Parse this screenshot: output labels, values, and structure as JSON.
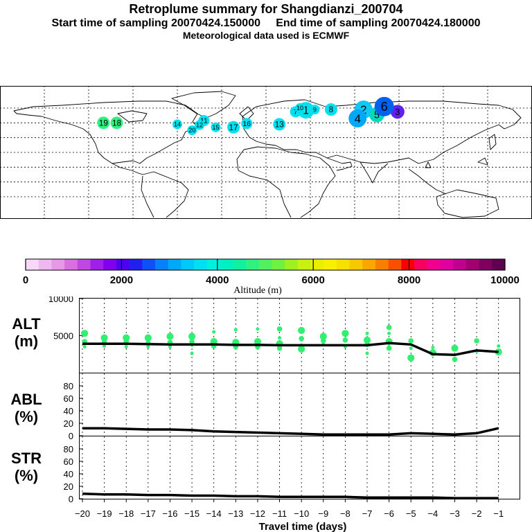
{
  "header": {
    "title": "Retroplume summary for Shangdianzi_200704",
    "start_label": "Start time of sampling 20070424.150000",
    "end_label": "End time of sampling 20070424.180000",
    "met_label": "Meteorological data used is ECMWF"
  },
  "colorbar": {
    "ticks": [
      "0",
      "2000",
      "4000",
      "6000",
      "8000",
      "10000"
    ],
    "label": "Altitude (m)",
    "colors": [
      "#f8d8f8",
      "#f0b8f0",
      "#e898e8",
      "#d870e0",
      "#c048e0",
      "#a020e8",
      "#8000ee",
      "#5000f0",
      "#2020f0",
      "#1050f8",
      "#0880f8",
      "#00a8f8",
      "#00c8f8",
      "#00e0f0",
      "#00f0e0",
      "#00f0c0",
      "#10f0a0",
      "#30f080",
      "#50f060",
      "#70f040",
      "#a0f020",
      "#c8f010",
      "#e8f000",
      "#f8f000",
      "#f8e000",
      "#f8c800",
      "#f8a800",
      "#f88000",
      "#f85000",
      "#f80000",
      "#f80060",
      "#f00090",
      "#e000a0",
      "#c00090",
      "#a00070",
      "#800060",
      "#600050"
    ]
  },
  "map": {
    "plumes": [
      {
        "label": "1",
        "lon": 27,
        "lat": 57,
        "size": 12,
        "color": "#00e0f0"
      },
      {
        "label": "2",
        "lon": 66,
        "lat": 58,
        "size": 13,
        "color": "#10c8f8"
      },
      {
        "label": "3",
        "lon": 89,
        "lat": 55,
        "size": 10,
        "color": "#6020f0"
      },
      {
        "label": "4",
        "lon": 62,
        "lat": 46,
        "size": 13,
        "color": "#00a8f8"
      },
      {
        "label": "5",
        "lon": 75,
        "lat": 51,
        "size": 11,
        "color": "#00d8c0"
      },
      {
        "label": "6",
        "lon": 80,
        "lat": 62,
        "size": 14,
        "color": "#0060f0"
      },
      {
        "label": "7",
        "lon": 20,
        "lat": 55,
        "size": 8,
        "color": "#00e0f0"
      },
      {
        "label": "8",
        "lon": 44,
        "lat": 58,
        "size": 9,
        "color": "#00e0f0"
      },
      {
        "label": "9",
        "lon": 33,
        "lat": 58,
        "size": 7,
        "color": "#00e0f0"
      },
      {
        "label": "10",
        "lon": 23,
        "lat": 60,
        "size": 7,
        "color": "#00e0f0"
      },
      {
        "label": "11",
        "lon": -42,
        "lat": 43,
        "size": 8,
        "color": "#00e0f0"
      },
      {
        "label": "12",
        "lon": -45,
        "lat": 37,
        "size": 7,
        "color": "#00e0f0"
      },
      {
        "label": "13",
        "lon": 9,
        "lat": 38,
        "size": 9,
        "color": "#00e0f0"
      },
      {
        "label": "14",
        "lon": -60,
        "lat": 38,
        "size": 7,
        "color": "#00e0f0"
      },
      {
        "label": "15",
        "lon": -34,
        "lat": 34,
        "size": 7,
        "color": "#00e0f0"
      },
      {
        "label": "16",
        "lon": -13,
        "lat": 39,
        "size": 8,
        "color": "#00e0f0"
      },
      {
        "label": "17",
        "lon": -22,
        "lat": 34,
        "size": 9,
        "color": "#00e0f0"
      },
      {
        "label": "18",
        "lon": -101,
        "lat": 40,
        "size": 9,
        "color": "#30f080"
      },
      {
        "label": "19",
        "lon": -110,
        "lat": 40,
        "size": 9,
        "color": "#30f080"
      },
      {
        "label": "20",
        "lon": -50,
        "lat": 30,
        "size": 7,
        "color": "#00e0f0"
      }
    ]
  },
  "chart_data": [
    {
      "type": "line",
      "title": "ALT",
      "ylabel": "(m)",
      "xlabel": "Travel time (days)",
      "x": [
        -20,
        -19,
        -18,
        -17,
        -16,
        -15,
        -14,
        -13,
        -12,
        -11,
        -10,
        -9,
        -8,
        -7,
        -6,
        -5,
        -4,
        -3,
        -2,
        -1
      ],
      "xticks": [
        "−20",
        "−19",
        "−18",
        "−17",
        "−16",
        "−15",
        "−14",
        "−13",
        "−12",
        "−11",
        "−10",
        "−9",
        "−8",
        "−7",
        "−6",
        "−5",
        "−4",
        "−3",
        "−2",
        "−1"
      ],
      "values": [
        3900,
        3900,
        3900,
        3850,
        3800,
        3800,
        3800,
        3750,
        3750,
        3700,
        3700,
        3700,
        3700,
        3700,
        4000,
        3800,
        2500,
        2400,
        3000,
        2800
      ],
      "yticks": [
        "10000",
        "5000"
      ],
      "ylim": [
        0,
        10000
      ],
      "dots": [
        [
          -19.9,
          3500
        ],
        [
          -19.9,
          4200
        ],
        [
          -19.9,
          5300
        ],
        [
          -19,
          3600
        ],
        [
          -19,
          4100
        ],
        [
          -19,
          4700
        ],
        [
          -18,
          3500
        ],
        [
          -18,
          4200
        ],
        [
          -18,
          4700
        ],
        [
          -17,
          3500
        ],
        [
          -17,
          4000
        ],
        [
          -17,
          4700
        ],
        [
          -16,
          3500
        ],
        [
          -16,
          4100
        ],
        [
          -16,
          4900
        ],
        [
          -15,
          3700
        ],
        [
          -15,
          4200
        ],
        [
          -15,
          4900
        ],
        [
          -15,
          2600
        ],
        [
          -14,
          3600
        ],
        [
          -14,
          4200
        ],
        [
          -14,
          5500
        ],
        [
          -13,
          3500
        ],
        [
          -13,
          4100
        ],
        [
          -13,
          5800
        ],
        [
          -12,
          3500
        ],
        [
          -12,
          4200
        ],
        [
          -12,
          5900
        ],
        [
          -11,
          3300
        ],
        [
          -11,
          3900
        ],
        [
          -11,
          4700
        ],
        [
          -11,
          5900
        ],
        [
          -10,
          3200
        ],
        [
          -10,
          3700
        ],
        [
          -10,
          4600
        ],
        [
          -10,
          5700
        ],
        [
          -9,
          3800
        ],
        [
          -9,
          4300
        ],
        [
          -9,
          4900
        ],
        [
          -8,
          3500
        ],
        [
          -8,
          4400
        ],
        [
          -8,
          5300
        ],
        [
          -7,
          2600
        ],
        [
          -7,
          3800
        ],
        [
          -7,
          4400
        ],
        [
          -7,
          5300
        ],
        [
          -6,
          3300
        ],
        [
          -6,
          4200
        ],
        [
          -6,
          5300
        ],
        [
          -6,
          6100
        ],
        [
          -5,
          2000
        ],
        [
          -5,
          3300
        ],
        [
          -5,
          4300
        ],
        [
          -4,
          2700
        ],
        [
          -4,
          3400
        ],
        [
          -3,
          1800
        ],
        [
          -3,
          3300
        ],
        [
          -2,
          2900
        ],
        [
          -2,
          4300
        ],
        [
          -1,
          2800
        ],
        [
          -1,
          3600
        ]
      ]
    },
    {
      "type": "line",
      "title": "ABL",
      "ylabel": "(%)",
      "x": [
        -20,
        -19,
        -18,
        -17,
        -16,
        -15,
        -14,
        -13,
        -12,
        -11,
        -10,
        -9,
        -8,
        -7,
        -6,
        -5,
        -4,
        -3,
        -2,
        -1
      ],
      "values": [
        12,
        12,
        11,
        10,
        10,
        9,
        7,
        6,
        5,
        4,
        3,
        2,
        2,
        2,
        2,
        4,
        3,
        2,
        4,
        12
      ],
      "yticks": [
        "80",
        "60",
        "40",
        "20",
        "0"
      ],
      "ylim": [
        0,
        100
      ]
    },
    {
      "type": "line",
      "title": "STR",
      "ylabel": "(%)",
      "x": [
        -20,
        -19,
        -18,
        -17,
        -16,
        -15,
        -14,
        -13,
        -12,
        -11,
        -10,
        -9,
        -8,
        -7,
        -6,
        -5,
        -4,
        -3,
        -2,
        -1
      ],
      "values": [
        8,
        7,
        7,
        6,
        6,
        5,
        5,
        4,
        4,
        3,
        3,
        3,
        3,
        2,
        2,
        2,
        2,
        1,
        1,
        1
      ],
      "yticks": [
        "80",
        "60",
        "40",
        "20",
        "0"
      ],
      "ylim": [
        0,
        100
      ]
    }
  ]
}
